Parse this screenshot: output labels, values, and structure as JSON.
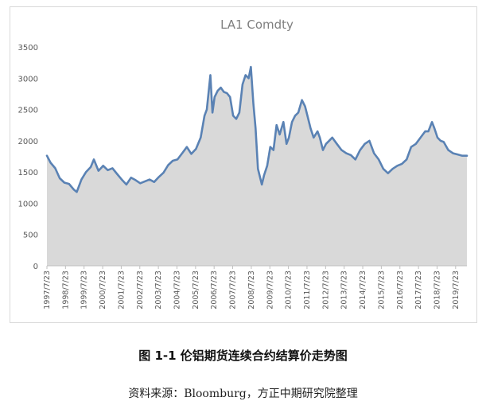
{
  "figure_caption": "图 1-1  伦铝期货连续合约结算价走势图",
  "source_note": "资料来源：Bloomburg，方正中期研究院整理",
  "colors": {
    "line": "#5a82b4",
    "area": "#d9d9d9",
    "title": "#7f7f7f",
    "axis_text": "#595959",
    "frame": "#d9d9d9"
  },
  "chart_data": {
    "type": "area",
    "title": "LA1 Comdty",
    "xlabel": "",
    "ylabel": "",
    "ylim": [
      0,
      3500
    ],
    "y_ticks": [
      "0",
      "500",
      "1000",
      "1500",
      "2000",
      "2500",
      "3000",
      "3500"
    ],
    "x_ticks": [
      "1997/7/23",
      "1998/7/23",
      "1999/7/23",
      "2000/7/23",
      "2001/7/23",
      "2002/7/23",
      "2003/7/23",
      "2004/7/23",
      "2005/7/23",
      "2006/7/23",
      "2007/7/23",
      "2008/7/23",
      "2009/7/23",
      "2010/7/23",
      "2011/7/23",
      "2012/7/23",
      "2013/7/23",
      "2014/7/23",
      "2015/7/23",
      "2016/7/23",
      "2017/7/23",
      "2018/7/23",
      "2019/7/23"
    ],
    "xlim": [
      "1997/7/23",
      "2020/3/1"
    ],
    "grid": false,
    "legend": "none",
    "series": [
      {
        "x": [
          "1997/7/23",
          "1997/10/1",
          "1998/1/1",
          "1998/4/1",
          "1998/7/1",
          "1998/10/1",
          "1999/1/1",
          "1999/3/1",
          "1999/6/1",
          "1999/9/1",
          "1999/12/1",
          "2000/2/1",
          "2000/5/1",
          "2000/8/1",
          "2000/11/1",
          "2001/2/1",
          "2001/5/1",
          "2001/8/1",
          "2001/11/1",
          "2002/2/1",
          "2002/5/1",
          "2002/8/1",
          "2002/11/1",
          "2003/2/1",
          "2003/5/1",
          "2003/8/1",
          "2003/11/1",
          "2004/2/1",
          "2004/5/1",
          "2004/8/1",
          "2004/11/1",
          "2005/2/1",
          "2005/5/1",
          "2005/8/1",
          "2005/11/1",
          "2006/1/15",
          "2006/3/1",
          "2006/5/10",
          "2006/6/20",
          "2006/8/1",
          "2006/10/1",
          "2006/12/1",
          "2007/2/1",
          "2007/4/1",
          "2007/6/1",
          "2007/8/1",
          "2007/10/1",
          "2007/12/1",
          "2008/2/1",
          "2008/4/1",
          "2008/6/1",
          "2008/7/15",
          "2008/9/1",
          "2008/10/15",
          "2008/12/1",
          "2009/2/15",
          "2009/4/1",
          "2009/6/1",
          "2009/8/1",
          "2009/10/1",
          "2009/12/1",
          "2010/2/1",
          "2010/4/15",
          "2010/6/15",
          "2010/8/1",
          "2010/10/1",
          "2010/12/1",
          "2011/2/1",
          "2011/4/15",
          "2011/6/15",
          "2011/8/1",
          "2011/10/1",
          "2011/12/1",
          "2012/2/15",
          "2012/4/1",
          "2012/6/1",
          "2012/8/1",
          "2012/10/1",
          "2012/12/1",
          "2013/3/1",
          "2013/6/1",
          "2013/9/1",
          "2013/12/1",
          "2014/3/1",
          "2014/6/1",
          "2014/9/1",
          "2014/12/1",
          "2015/3/1",
          "2015/6/1",
          "2015/9/1",
          "2015/12/1",
          "2016/3/1",
          "2016/6/1",
          "2016/9/1",
          "2016/12/1",
          "2017/3/1",
          "2017/6/1",
          "2017/9/1",
          "2017/12/1",
          "2018/2/1",
          "2018/4/15",
          "2018/6/1",
          "2018/8/1",
          "2018/10/1",
          "2018/12/1",
          "2019/3/1",
          "2019/6/1",
          "2019/9/1",
          "2019/12/1",
          "2020/3/1"
        ],
        "values": [
          1760,
          1650,
          1560,
          1400,
          1330,
          1310,
          1220,
          1180,
          1380,
          1500,
          1580,
          1700,
          1520,
          1600,
          1530,
          1560,
          1470,
          1380,
          1300,
          1410,
          1370,
          1320,
          1350,
          1380,
          1340,
          1420,
          1490,
          1610,
          1680,
          1700,
          1800,
          1900,
          1790,
          1870,
          2050,
          2400,
          2500,
          3050,
          2450,
          2700,
          2800,
          2850,
          2780,
          2760,
          2700,
          2400,
          2350,
          2450,
          2900,
          3050,
          3000,
          3180,
          2600,
          2200,
          1550,
          1300,
          1450,
          1600,
          1900,
          1850,
          2250,
          2100,
          2300,
          1950,
          2050,
          2300,
          2400,
          2450,
          2650,
          2550,
          2400,
          2200,
          2050,
          2150,
          2050,
          1850,
          1950,
          2000,
          2050,
          1950,
          1850,
          1800,
          1770,
          1700,
          1850,
          1950,
          2000,
          1800,
          1700,
          1550,
          1480,
          1550,
          1600,
          1630,
          1700,
          1900,
          1950,
          2050,
          2150,
          2150,
          2300,
          2200,
          2050,
          2000,
          1980,
          1850,
          1800,
          1780,
          1760,
          1760
        ]
      }
    ]
  }
}
